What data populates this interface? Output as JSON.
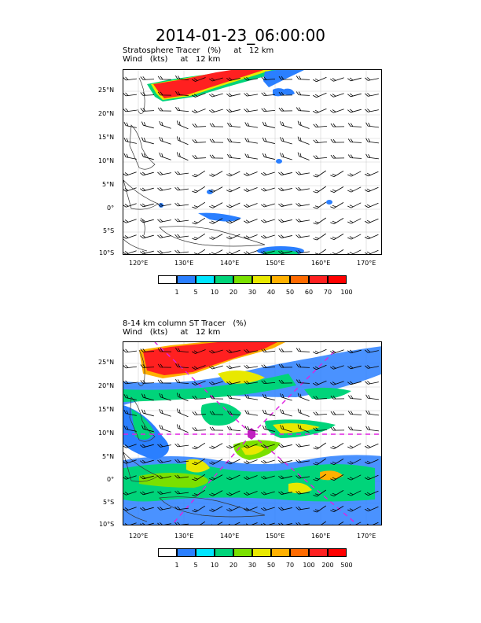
{
  "title": "2014-01-23_06:00:00",
  "panels": [
    {
      "label_line1_a": "Stratosphere Tracer",
      "label_line1_b": "(%)",
      "label_line1_c": "at",
      "label_line1_d": "12 km",
      "label_line2_a": "Wind",
      "label_line2_b": "(kts)",
      "label_line2_c": "at",
      "label_line2_d": "12 km",
      "colorbar": {
        "colors": [
          "#ffffff",
          "#2a7fff",
          "#00e5ff",
          "#00d47a",
          "#7ae000",
          "#e8e800",
          "#ffb000",
          "#ff6a00",
          "#ff2020",
          "#ff0000"
        ],
        "labels": [
          "1",
          "5",
          "10",
          "20",
          "30",
          "40",
          "50",
          "60",
          "70",
          "100"
        ]
      }
    },
    {
      "label_line1_a": "8-14 km column ST Tracer",
      "label_line1_b": "(%)",
      "label_line2_a": "Wind",
      "label_line2_b": "(kts)",
      "label_line2_c": "at",
      "label_line2_d": "12 km",
      "colorbar": {
        "colors": [
          "#ffffff",
          "#2a7fff",
          "#00e5ff",
          "#00d47a",
          "#7ae000",
          "#e8e800",
          "#ffb000",
          "#ff6a00",
          "#ff2020",
          "#ff0000"
        ],
        "labels": [
          "1",
          "5",
          "10",
          "20",
          "30",
          "50",
          "70",
          "100",
          "200",
          "500"
        ]
      }
    }
  ],
  "axes": {
    "lat_labels": [
      "25°N",
      "20°N",
      "15°N",
      "10°N",
      "5°N",
      "0°",
      "5°S",
      "10°S"
    ],
    "lon_labels": [
      "120°E",
      "130°E",
      "140°E",
      "150°E",
      "160°E",
      "170°E"
    ]
  }
}
